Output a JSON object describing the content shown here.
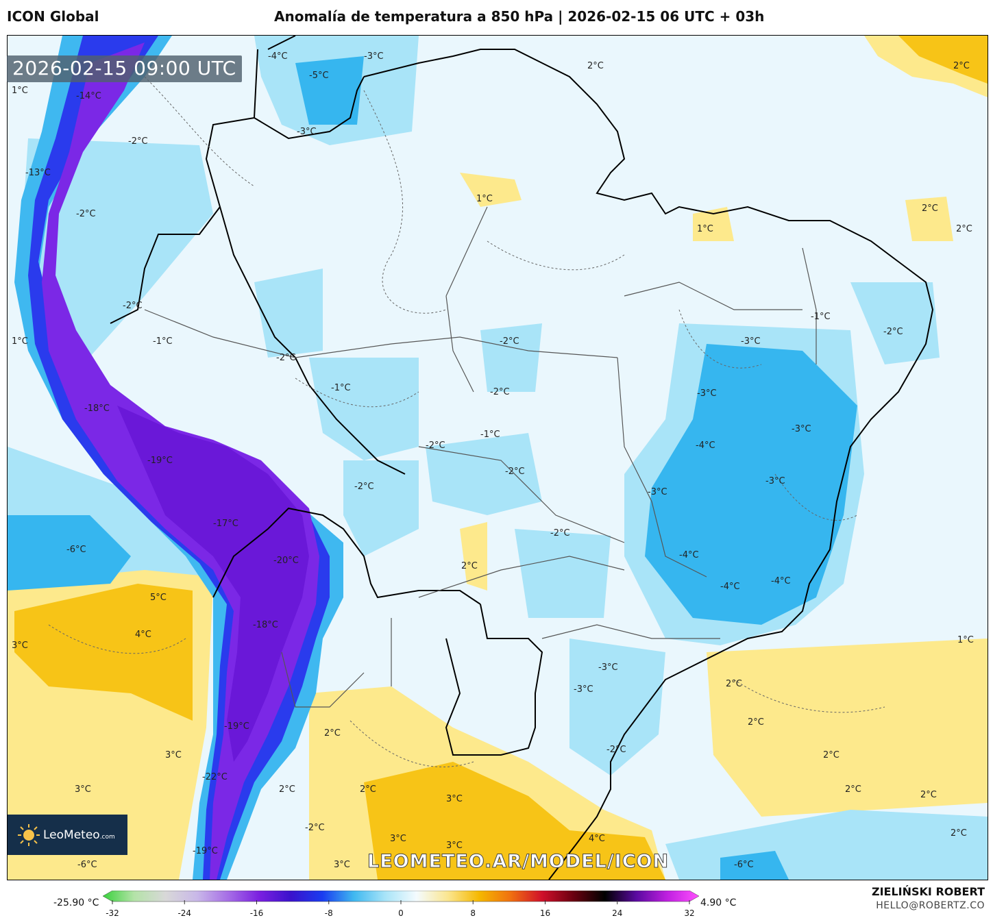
{
  "header": {
    "model": "ICON Global",
    "title": "Anomalía de temperatura a 850 hPa | 2026-02-15 06 UTC + 03h"
  },
  "map": {
    "valid_time": "2026-02-15 09:00 UTC",
    "watermark": "LEOMETEO.AR/MODEL/ICON",
    "contour_labels": [
      {
        "text": "-4°C"
      },
      {
        "text": "-3°C"
      },
      {
        "text": "-5°C"
      },
      {
        "text": "-3°C"
      },
      {
        "text": "2°C"
      },
      {
        "text": "2°C"
      },
      {
        "text": "1°C"
      },
      {
        "text": "-14°C"
      },
      {
        "text": "-2°C"
      },
      {
        "text": "-13°C"
      },
      {
        "text": "1°C"
      },
      {
        "text": "2°C"
      },
      {
        "text": "1°C"
      },
      {
        "text": "2°C"
      },
      {
        "text": "-2°C"
      },
      {
        "text": "-2°C"
      },
      {
        "text": "1°C"
      },
      {
        "text": "-1°C"
      },
      {
        "text": "-2°C"
      },
      {
        "text": "-1°C"
      },
      {
        "text": "-2°C"
      },
      {
        "text": "-1°C"
      },
      {
        "text": "-2°C"
      },
      {
        "text": "-3°C"
      },
      {
        "text": "-1°C"
      },
      {
        "text": "-2°C"
      },
      {
        "text": "-3°C"
      },
      {
        "text": "-18°C"
      },
      {
        "text": "-3°C"
      },
      {
        "text": "-19°C"
      },
      {
        "text": "-2°C"
      },
      {
        "text": "-2°C"
      },
      {
        "text": "-4°C"
      },
      {
        "text": "-3°C"
      },
      {
        "text": "-3°C"
      },
      {
        "text": "-17°C"
      },
      {
        "text": "-2°C"
      },
      {
        "text": "-6°C"
      },
      {
        "text": "-20°C"
      },
      {
        "text": "2°C"
      },
      {
        "text": "-2°C"
      },
      {
        "text": "-4°C"
      },
      {
        "text": "-4°C"
      },
      {
        "text": "-4°C"
      },
      {
        "text": "5°C"
      },
      {
        "text": "4°C"
      },
      {
        "text": "-18°C"
      },
      {
        "text": "1°C"
      },
      {
        "text": "3°C"
      },
      {
        "text": "-3°C"
      },
      {
        "text": "-3°C"
      },
      {
        "text": "2°C"
      },
      {
        "text": "2°C"
      },
      {
        "text": "-19°C"
      },
      {
        "text": "2°C"
      },
      {
        "text": "-2°C"
      },
      {
        "text": "3°C"
      },
      {
        "text": "2°C"
      },
      {
        "text": "-22°C"
      },
      {
        "text": "3°C"
      },
      {
        "text": "2°C"
      },
      {
        "text": "2°C"
      },
      {
        "text": "3°C"
      },
      {
        "text": "2°C"
      },
      {
        "text": "2°C"
      },
      {
        "text": "-2°C"
      },
      {
        "text": "3°C"
      },
      {
        "text": "3°C"
      },
      {
        "text": "4°C"
      },
      {
        "text": "2°C"
      },
      {
        "text": "-19°C"
      },
      {
        "text": "-6°C"
      },
      {
        "text": "3°C"
      },
      {
        "text": "-6°C"
      }
    ]
  },
  "logo": {
    "name": "LeoMeteo",
    "suffix": ".com"
  },
  "colorbar": {
    "min_label": "-25.90 °C",
    "max_label": "4.90 °C",
    "ticks": [
      "-32",
      "-24",
      "-16",
      "-8",
      "0",
      "8",
      "16",
      "24",
      "32"
    ],
    "colors": [
      "#39d13c",
      "#b4e3a8",
      "#d8d8d8",
      "#c9b8e8",
      "#a66ee6",
      "#7a1fe0",
      "#3a12cc",
      "#1a3cf0",
      "#3fb8f0",
      "#a8e4f8",
      "#f4fbfe",
      "#fbe690",
      "#f5b800",
      "#f07010",
      "#d0102a",
      "#6a0010",
      "#000000",
      "#5a0aa0",
      "#c020e0",
      "#ff50ff"
    ]
  },
  "credits": {
    "author": "ZIELIŃSKI ROBERT",
    "email": "HELLO@ROBERTZ.CO"
  },
  "colors": {
    "cold_extreme": "#7b28e6",
    "cold_strong": "#3a1cd8",
    "cold_mid": "#36b6ef",
    "cold_light": "#a9e4f8",
    "neutral": "#eaf7fd",
    "warm_light": "#fde98c",
    "warm_mid": "#f7c417"
  }
}
